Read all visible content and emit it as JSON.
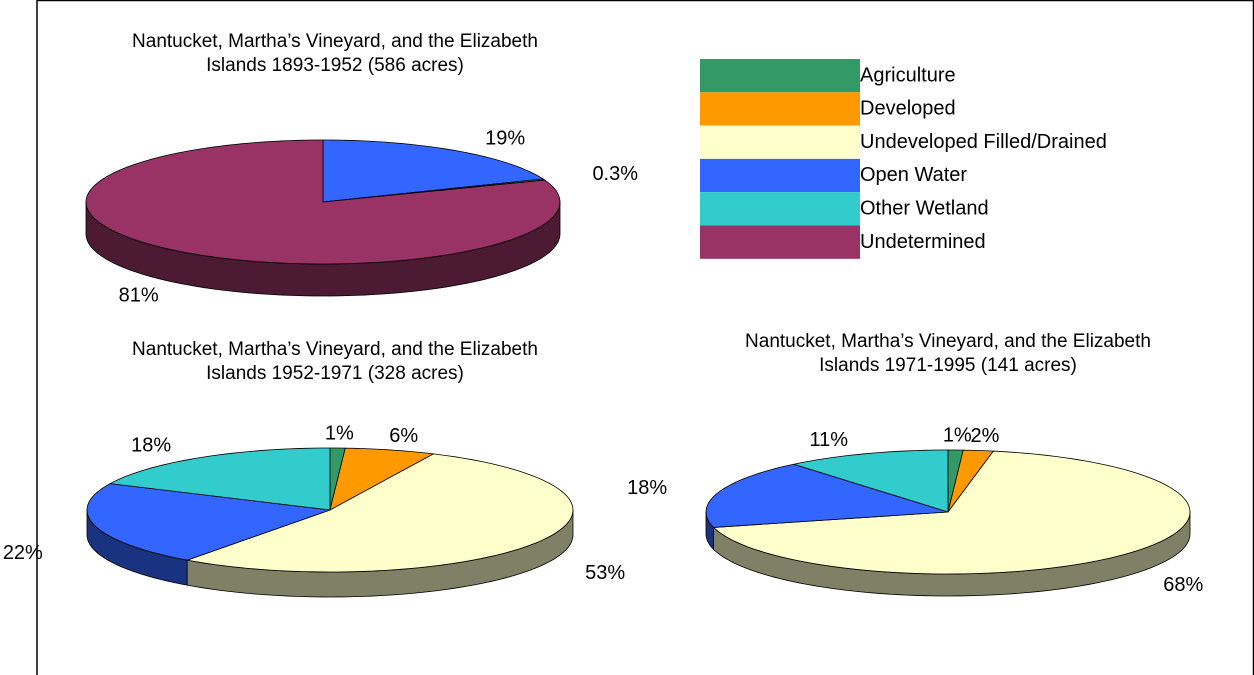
{
  "legend": {
    "items": [
      {
        "name": "Agriculture",
        "color": "#339966"
      },
      {
        "name": "Developed",
        "color": "#FF9900"
      },
      {
        "name": "Undeveloped Filled/Drained",
        "color": "#FFFFCC"
      },
      {
        "name": "Open Water",
        "color": "#3366FF"
      },
      {
        "name": "Other Wetland",
        "color": "#33CCCC"
      },
      {
        "name": "Undetermined",
        "color": "#993366"
      }
    ]
  },
  "chart_data": [
    {
      "type": "pie",
      "title": "Nantucket, Martha’s Vineyard, and the Elizabeth Islands 1893-1952 (586 acres)",
      "categories": [
        "Open Water",
        "Other Wetland",
        "Undetermined"
      ],
      "values": [
        19,
        0.3,
        81
      ],
      "value_labels": [
        "19%",
        "0.3%",
        "81%"
      ]
    },
    {
      "type": "pie",
      "title": "Nantucket, Martha’s Vineyard, and the Elizabeth Islands 1952-1971 (328 acres)",
      "categories": [
        "Agriculture",
        "Developed",
        "Undeveloped Filled/Drained",
        "Open Water",
        "Other Wetland"
      ],
      "values": [
        1,
        6,
        53,
        22,
        18
      ],
      "value_labels": [
        "1%",
        "6%",
        "53%",
        "22%",
        "18%"
      ]
    },
    {
      "type": "pie",
      "title": "Nantucket, Martha’s Vineyard, and the Elizabeth Islands 1971-1995 (141 acres)",
      "categories": [
        "Agriculture",
        "Developed",
        "Undeveloped Filled/Drained",
        "Open Water",
        "Other Wetland"
      ],
      "values": [
        1,
        2,
        68,
        18,
        11
      ],
      "value_labels": [
        "1%",
        "2%",
        "68%",
        "18%",
        "11%"
      ]
    }
  ]
}
